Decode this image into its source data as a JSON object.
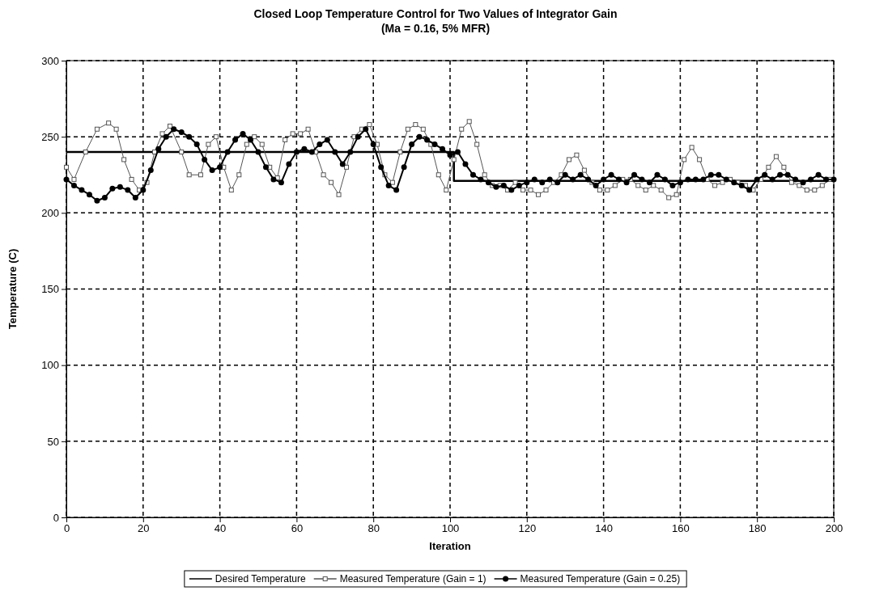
{
  "chart_data": {
    "type": "line",
    "title": "Closed Loop Temperature Control for Two Values of Integrator Gain",
    "subtitle": "(Ma = 0.16, 5% MFR)",
    "xlabel": "Iteration",
    "ylabel": "Temperature (C)",
    "xlim": [
      0,
      200
    ],
    "ylim": [
      0,
      300
    ],
    "xticks": [
      0,
      20,
      40,
      60,
      80,
      100,
      120,
      140,
      160,
      180,
      200
    ],
    "yticks": [
      0,
      50,
      100,
      150,
      200,
      250,
      300
    ],
    "grid": true,
    "legend": "bottom",
    "line_style": "solid",
    "series": [
      {
        "name": "Desired Temperature",
        "color": "#000000",
        "marker": "none",
        "x": [
          0,
          101,
          101,
          200
        ],
        "values": [
          240,
          240,
          221,
          221
        ]
      },
      {
        "name": "Measured Temperature (Gain = 1)",
        "color": "#555555",
        "marker": "square",
        "x": [
          0,
          2,
          5,
          8,
          11,
          13,
          15,
          17,
          19,
          21,
          23,
          25,
          27,
          30,
          32,
          35,
          37,
          39,
          41,
          43,
          45,
          47,
          49,
          51,
          53,
          55,
          57,
          59,
          61,
          63,
          65,
          67,
          69,
          71,
          73,
          75,
          77,
          79,
          81,
          83,
          85,
          87,
          89,
          91,
          93,
          95,
          97,
          99,
          101,
          103,
          105,
          107,
          109,
          111,
          113,
          115,
          117,
          119,
          121,
          123,
          125,
          127,
          129,
          131,
          133,
          135,
          137,
          139,
          141,
          143,
          145,
          147,
          149,
          151,
          153,
          155,
          157,
          159,
          161,
          163,
          165,
          167,
          169,
          171,
          173,
          175,
          177,
          179,
          181,
          183,
          185,
          187,
          189,
          191,
          193,
          195,
          197,
          199
        ],
        "values": [
          230,
          222,
          240,
          255,
          259,
          255,
          235,
          222,
          215,
          220,
          240,
          252,
          257,
          240,
          225,
          225,
          245,
          250,
          230,
          215,
          225,
          245,
          250,
          245,
          230,
          223,
          248,
          252,
          252,
          255,
          240,
          225,
          220,
          212,
          230,
          250,
          255,
          258,
          245,
          225,
          220,
          240,
          255,
          258,
          255,
          245,
          225,
          215,
          235,
          255,
          260,
          245,
          225,
          218,
          218,
          215,
          220,
          215,
          215,
          212,
          215,
          220,
          225,
          235,
          238,
          228,
          220,
          215,
          215,
          218,
          222,
          222,
          218,
          215,
          218,
          215,
          210,
          212,
          235,
          243,
          235,
          222,
          218,
          220,
          222,
          220,
          218,
          215,
          222,
          230,
          237,
          230,
          220,
          218,
          215,
          215,
          218,
          222
        ]
      },
      {
        "name": "Measured Temperature (Gain = 0.25)",
        "color": "#000000",
        "marker": "circle",
        "x": [
          0,
          2,
          4,
          6,
          8,
          10,
          12,
          14,
          16,
          18,
          20,
          22,
          24,
          26,
          28,
          30,
          32,
          34,
          36,
          38,
          40,
          42,
          44,
          46,
          48,
          50,
          52,
          54,
          56,
          58,
          60,
          62,
          64,
          66,
          68,
          70,
          72,
          74,
          76,
          78,
          80,
          82,
          84,
          86,
          88,
          90,
          92,
          94,
          96,
          98,
          100,
          102,
          104,
          106,
          108,
          110,
          112,
          114,
          116,
          118,
          120,
          122,
          124,
          126,
          128,
          130,
          132,
          134,
          136,
          138,
          140,
          142,
          144,
          146,
          148,
          150,
          152,
          154,
          156,
          158,
          160,
          162,
          164,
          166,
          168,
          170,
          172,
          174,
          176,
          178,
          180,
          182,
          184,
          186,
          188,
          190,
          192,
          194,
          196,
          198,
          200
        ],
        "values": [
          222,
          218,
          215,
          212,
          208,
          210,
          216,
          217,
          215,
          210,
          215,
          228,
          242,
          250,
          255,
          253,
          250,
          245,
          235,
          228,
          230,
          240,
          248,
          252,
          248,
          240,
          230,
          222,
          220,
          232,
          240,
          242,
          240,
          245,
          248,
          240,
          232,
          240,
          250,
          255,
          245,
          230,
          218,
          215,
          230,
          245,
          250,
          248,
          245,
          242,
          238,
          240,
          232,
          225,
          222,
          220,
          217,
          218,
          215,
          218,
          220,
          222,
          220,
          222,
          220,
          225,
          222,
          225,
          222,
          218,
          222,
          225,
          222,
          220,
          225,
          222,
          220,
          225,
          222,
          218,
          220,
          222,
          222,
          222,
          225,
          225,
          222,
          220,
          218,
          215,
          222,
          225,
          222,
          225,
          225,
          222,
          220,
          222,
          225,
          222,
          222
        ]
      }
    ]
  }
}
